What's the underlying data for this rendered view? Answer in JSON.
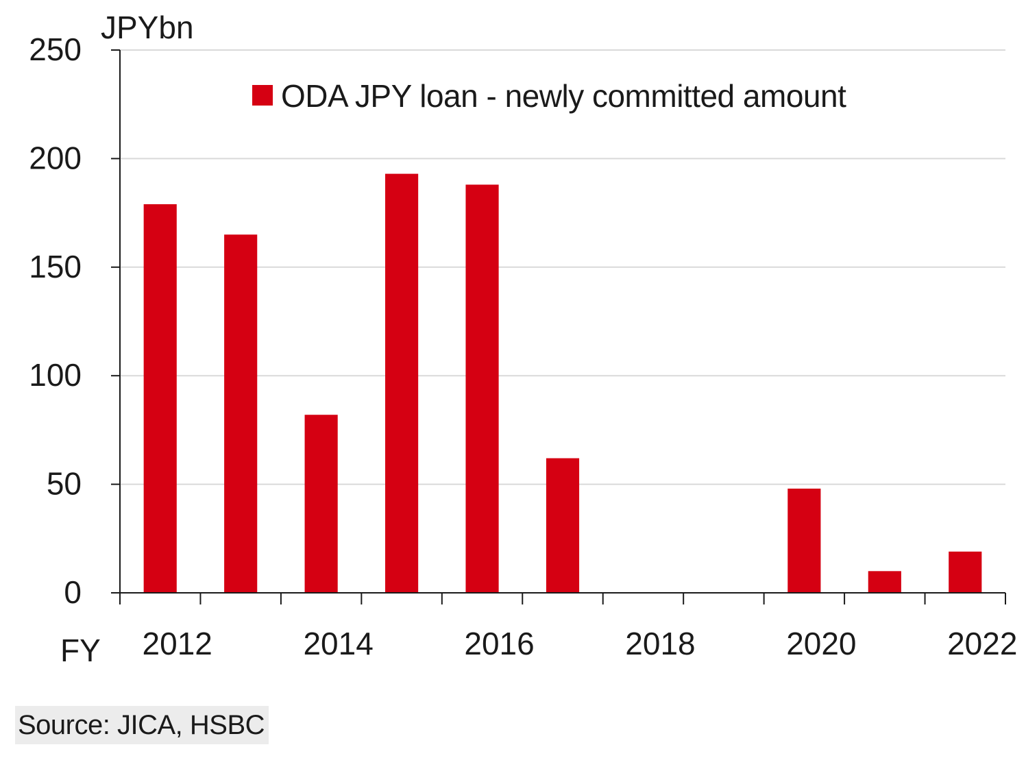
{
  "chart_data": {
    "type": "bar",
    "ylabel": "JPYbn",
    "xlabel": "FY",
    "ylim": [
      0,
      250
    ],
    "yticks": [
      0,
      50,
      100,
      150,
      200,
      250
    ],
    "grid": true,
    "legend_position": "top",
    "categories": [
      "2012",
      "2013",
      "2014",
      "2015",
      "2016",
      "2017",
      "2018",
      "2019",
      "2020",
      "2021",
      "2022"
    ],
    "tick_labels": [
      "2012",
      "2014",
      "2016",
      "2018",
      "2020",
      "2022"
    ],
    "series": [
      {
        "name": "ODA JPY loan - newly committed amount",
        "color": "#d50012",
        "values": [
          179,
          165,
          82,
          193,
          188,
          62,
          0,
          0,
          48,
          10,
          19
        ]
      }
    ]
  },
  "source": "Source: JICA, HSBC"
}
